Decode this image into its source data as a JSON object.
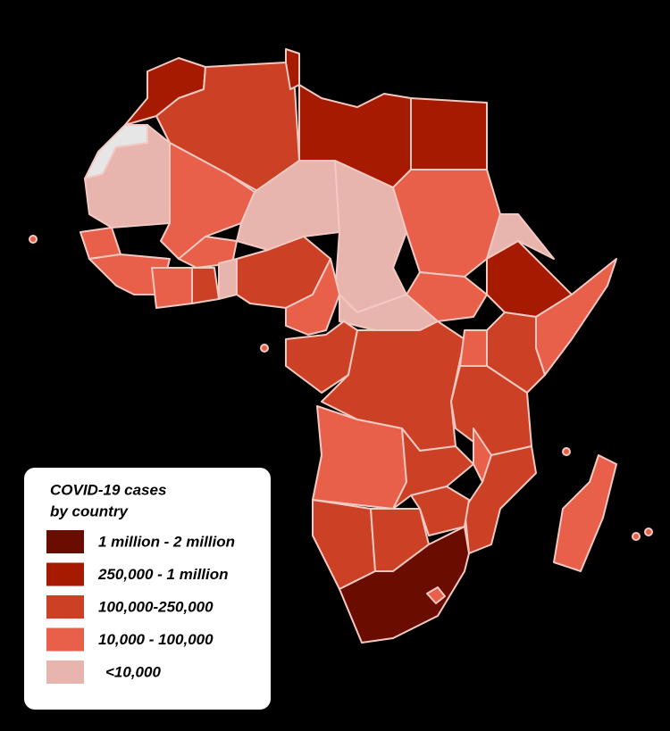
{
  "legend": {
    "title": [
      "COVID-19 cases",
      "by country"
    ],
    "items": [
      {
        "label": "1 million - 2 million",
        "color": "#6b0c00"
      },
      {
        "label": "250,000 - 1 million",
        "color": "#a51a00"
      },
      {
        "label": "100,000-250,000",
        "color": "#cc4125"
      },
      {
        "label": "10,000 - 100,000",
        "color": "#e8604a"
      },
      {
        "label": "<10,000",
        "color": "#e8b4ae"
      }
    ]
  }
}
